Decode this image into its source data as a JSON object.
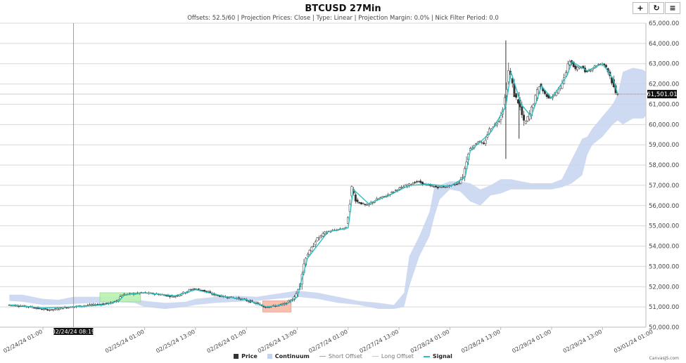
{
  "header": {
    "title": "BTCUSD 27Min",
    "subtitle": "Offsets: 52.5/60 | Projection Prices: Close | Type: Linear | Projection Margin: 0.0% | Nick Filter Period: 0.0"
  },
  "toolbar": {
    "zoom_label": "+",
    "reset_label": "↻",
    "menu_label": "≡"
  },
  "colors": {
    "price": "#333333",
    "continuum": "#c6d3ee",
    "short_offset": "#f08a7a",
    "long_offset": "#c9c9c9",
    "signal": "#28c0c0",
    "long_zone": "#b9f2b0",
    "short_zone": "#f7b8a6"
  },
  "crosshair": {
    "label": "02/24/24 08:19"
  },
  "price_label": "61,501.01",
  "legend": {
    "price": "Price",
    "continuum": "Continuum",
    "short_offset": "Short Offset",
    "long_offset": "Long Offset",
    "signal": "Signal"
  },
  "credit": "CanvasJS.com",
  "chart_data": {
    "type": "candlestick",
    "title": "BTCUSD 27Min",
    "ylim": [
      50000,
      65000
    ],
    "y_ticks": [
      "50,000.00",
      "51,000.00",
      "52,000.00",
      "53,000.00",
      "54,000.00",
      "55,000.00",
      "56,000.00",
      "57,000.00",
      "58,000.00",
      "59,000.00",
      "60,000.00",
      "61,000.00",
      "62,000.00",
      "63,000.00",
      "64,000.00",
      "65,000.00"
    ],
    "x_range": [
      0,
      6.6
    ],
    "x_ticks": [
      {
        "label": "02/24/24 01:00",
        "x": 0.0
      },
      {
        "label": "02/25/24 01:00",
        "x": 1.0
      },
      {
        "label": "02/25/24 13:00",
        "x": 1.5
      },
      {
        "label": "02/26/24 01:00",
        "x": 2.0
      },
      {
        "label": "02/26/24 13:00",
        "x": 2.5
      },
      {
        "label": "02/27/24 01:00",
        "x": 3.0
      },
      {
        "label": "02/27/24 13:00",
        "x": 3.5
      },
      {
        "label": "02/28/24 01:00",
        "x": 4.0
      },
      {
        "label": "02/28/24 13:00",
        "x": 4.5
      },
      {
        "label": "02/29/24 01:00",
        "x": 5.0
      },
      {
        "label": "02/29/24 13:00",
        "x": 5.5
      },
      {
        "label": "03/01/24 01:00",
        "x": 6.0
      }
    ],
    "price_series": [
      [
        -0.33,
        51100
      ],
      [
        -0.2,
        51050
      ],
      [
        -0.1,
        51000
      ],
      [
        0.0,
        50900
      ],
      [
        0.1,
        50850
      ],
      [
        0.2,
        50950
      ],
      [
        0.3,
        51000
      ],
      [
        0.4,
        51050
      ],
      [
        0.5,
        51100
      ],
      [
        0.6,
        51150
      ],
      [
        0.7,
        51200
      ],
      [
        0.75,
        51350
      ],
      [
        0.8,
        51600
      ],
      [
        0.9,
        51650
      ],
      [
        1.0,
        51700
      ],
      [
        1.1,
        51650
      ],
      [
        1.2,
        51600
      ],
      [
        1.3,
        51500
      ],
      [
        1.4,
        51700
      ],
      [
        1.5,
        51900
      ],
      [
        1.6,
        51800
      ],
      [
        1.7,
        51600
      ],
      [
        1.8,
        51500
      ],
      [
        1.9,
        51450
      ],
      [
        2.0,
        51350
      ],
      [
        2.1,
        51200
      ],
      [
        2.2,
        51000
      ],
      [
        2.3,
        51050
      ],
      [
        2.4,
        51150
      ],
      [
        2.5,
        51500
      ],
      [
        2.55,
        52300
      ],
      [
        2.6,
        53500
      ],
      [
        2.65,
        53800
      ],
      [
        2.7,
        54300
      ],
      [
        2.8,
        54700
      ],
      [
        2.9,
        54800
      ],
      [
        3.0,
        54900
      ],
      [
        3.05,
        56900
      ],
      [
        3.1,
        56200
      ],
      [
        3.2,
        56000
      ],
      [
        3.3,
        56300
      ],
      [
        3.4,
        56500
      ],
      [
        3.5,
        56800
      ],
      [
        3.6,
        57000
      ],
      [
        3.7,
        57200
      ],
      [
        3.8,
        57000
      ],
      [
        3.9,
        56900
      ],
      [
        4.0,
        56950
      ],
      [
        4.1,
        57100
      ],
      [
        4.15,
        57500
      ],
      [
        4.2,
        58700
      ],
      [
        4.3,
        59200
      ],
      [
        4.35,
        59000
      ],
      [
        4.4,
        59700
      ],
      [
        4.5,
        60200
      ],
      [
        4.55,
        61000
      ],
      [
        4.6,
        62800
      ],
      [
        4.65,
        61500
      ],
      [
        4.7,
        61000
      ],
      [
        4.75,
        60000
      ],
      [
        4.8,
        60500
      ],
      [
        4.85,
        61200
      ],
      [
        4.9,
        62000
      ],
      [
        4.95,
        61500
      ],
      [
        5.0,
        61300
      ],
      [
        5.05,
        61500
      ],
      [
        5.1,
        61800
      ],
      [
        5.15,
        62500
      ],
      [
        5.2,
        63200
      ],
      [
        5.25,
        62700
      ],
      [
        5.3,
        62900
      ],
      [
        5.35,
        62600
      ],
      [
        5.4,
        62700
      ],
      [
        5.45,
        62900
      ],
      [
        5.5,
        63000
      ],
      [
        5.55,
        62900
      ],
      [
        5.6,
        62300
      ],
      [
        5.63,
        61800
      ],
      [
        5.65,
        61500
      ]
    ],
    "continuum_band": [
      [
        -0.33,
        51300,
        51600
      ],
      [
        -0.2,
        51250,
        51600
      ],
      [
        0.0,
        51100,
        51400
      ],
      [
        0.15,
        51100,
        51350
      ],
      [
        0.3,
        51150,
        51500
      ],
      [
        0.5,
        51200,
        51500
      ],
      [
        0.7,
        51250,
        51500
      ],
      [
        0.9,
        51200,
        51400
      ],
      [
        1.0,
        51000,
        51300
      ],
      [
        1.2,
        50900,
        51200
      ],
      [
        1.4,
        51000,
        51250
      ],
      [
        1.5,
        51100,
        51400
      ],
      [
        1.7,
        51200,
        51500
      ],
      [
        1.9,
        51250,
        51550
      ],
      [
        2.1,
        51300,
        51500
      ],
      [
        2.3,
        51400,
        51650
      ],
      [
        2.5,
        51500,
        51800
      ],
      [
        2.7,
        51400,
        51700
      ],
      [
        2.9,
        51200,
        51500
      ],
      [
        3.1,
        51100,
        51300
      ],
      [
        3.3,
        50900,
        51200
      ],
      [
        3.45,
        50900,
        51100
      ],
      [
        3.55,
        51000,
        51700
      ],
      [
        3.6,
        52000,
        53500
      ],
      [
        3.7,
        53500,
        54500
      ],
      [
        3.8,
        54500,
        55700
      ],
      [
        3.85,
        55500,
        57000
      ],
      [
        3.9,
        56300,
        57000
      ],
      [
        4.0,
        56800,
        57200
      ],
      [
        4.1,
        56700,
        57200
      ],
      [
        4.2,
        56200,
        57100
      ],
      [
        4.3,
        56000,
        56800
      ],
      [
        4.4,
        56500,
        57000
      ],
      [
        4.5,
        56600,
        57300
      ],
      [
        4.6,
        56800,
        57300
      ],
      [
        4.7,
        56800,
        57200
      ],
      [
        4.8,
        56800,
        57100
      ],
      [
        5.0,
        56800,
        57100
      ],
      [
        5.1,
        56900,
        57300
      ],
      [
        5.2,
        57100,
        58300
      ],
      [
        5.3,
        57500,
        59300
      ],
      [
        5.35,
        58500,
        59400
      ],
      [
        5.4,
        59000,
        59800
      ],
      [
        5.5,
        59400,
        60400
      ],
      [
        5.6,
        60000,
        61000
      ],
      [
        5.65,
        60200,
        61500
      ],
      [
        5.7,
        60000,
        62600
      ],
      [
        5.8,
        60300,
        62800
      ],
      [
        5.9,
        60300,
        62700
      ],
      [
        6.0,
        60800,
        62300
      ],
      [
        6.1,
        61200,
        62600
      ],
      [
        6.2,
        61300,
        63000
      ],
      [
        6.3,
        61500,
        63600
      ],
      [
        6.37,
        61500,
        63600
      ]
    ],
    "signal_series": [
      [
        -0.33,
        51100
      ],
      [
        0.0,
        50950
      ],
      [
        0.3,
        51000
      ],
      [
        0.6,
        51100
      ],
      [
        0.75,
        51300
      ],
      [
        0.8,
        51600
      ],
      [
        1.0,
        51700
      ],
      [
        1.3,
        51550
      ],
      [
        1.5,
        51850
      ],
      [
        1.8,
        51500
      ],
      [
        2.0,
        51350
      ],
      [
        2.2,
        51000
      ],
      [
        2.4,
        51150
      ],
      [
        2.5,
        51500
      ],
      [
        2.6,
        53400
      ],
      [
        2.8,
        54700
      ],
      [
        3.0,
        54900
      ],
      [
        3.05,
        56800
      ],
      [
        3.2,
        56100
      ],
      [
        3.4,
        56500
      ],
      [
        3.6,
        57000
      ],
      [
        3.8,
        57050
      ],
      [
        4.0,
        56950
      ],
      [
        4.15,
        57400
      ],
      [
        4.2,
        58700
      ],
      [
        4.4,
        59600
      ],
      [
        4.55,
        60900
      ],
      [
        4.6,
        62600
      ],
      [
        4.7,
        61000
      ],
      [
        4.8,
        60400
      ],
      [
        4.9,
        61900
      ],
      [
        5.0,
        61300
      ],
      [
        5.15,
        62400
      ],
      [
        5.2,
        63100
      ],
      [
        5.35,
        62650
      ],
      [
        5.5,
        63000
      ],
      [
        5.6,
        62300
      ],
      [
        5.65,
        61500
      ]
    ],
    "zones": [
      {
        "kind": "long",
        "x0": 0.56,
        "x1": 0.96,
        "y0": 51250,
        "y1": 51700
      },
      {
        "kind": "short",
        "x0": 2.16,
        "x1": 2.44,
        "y0": 50750,
        "y1": 51300
      }
    ],
    "short_offset_line": {
      "x0": 5.6,
      "x1": 6.37,
      "y": 61500
    },
    "crosshair_x": 0.3,
    "spikes": [
      {
        "x": 4.55,
        "high": 64150,
        "low": 58300
      },
      {
        "x": 4.68,
        "high": 61600,
        "low": 59300
      }
    ],
    "last_price": 61501.01
  }
}
